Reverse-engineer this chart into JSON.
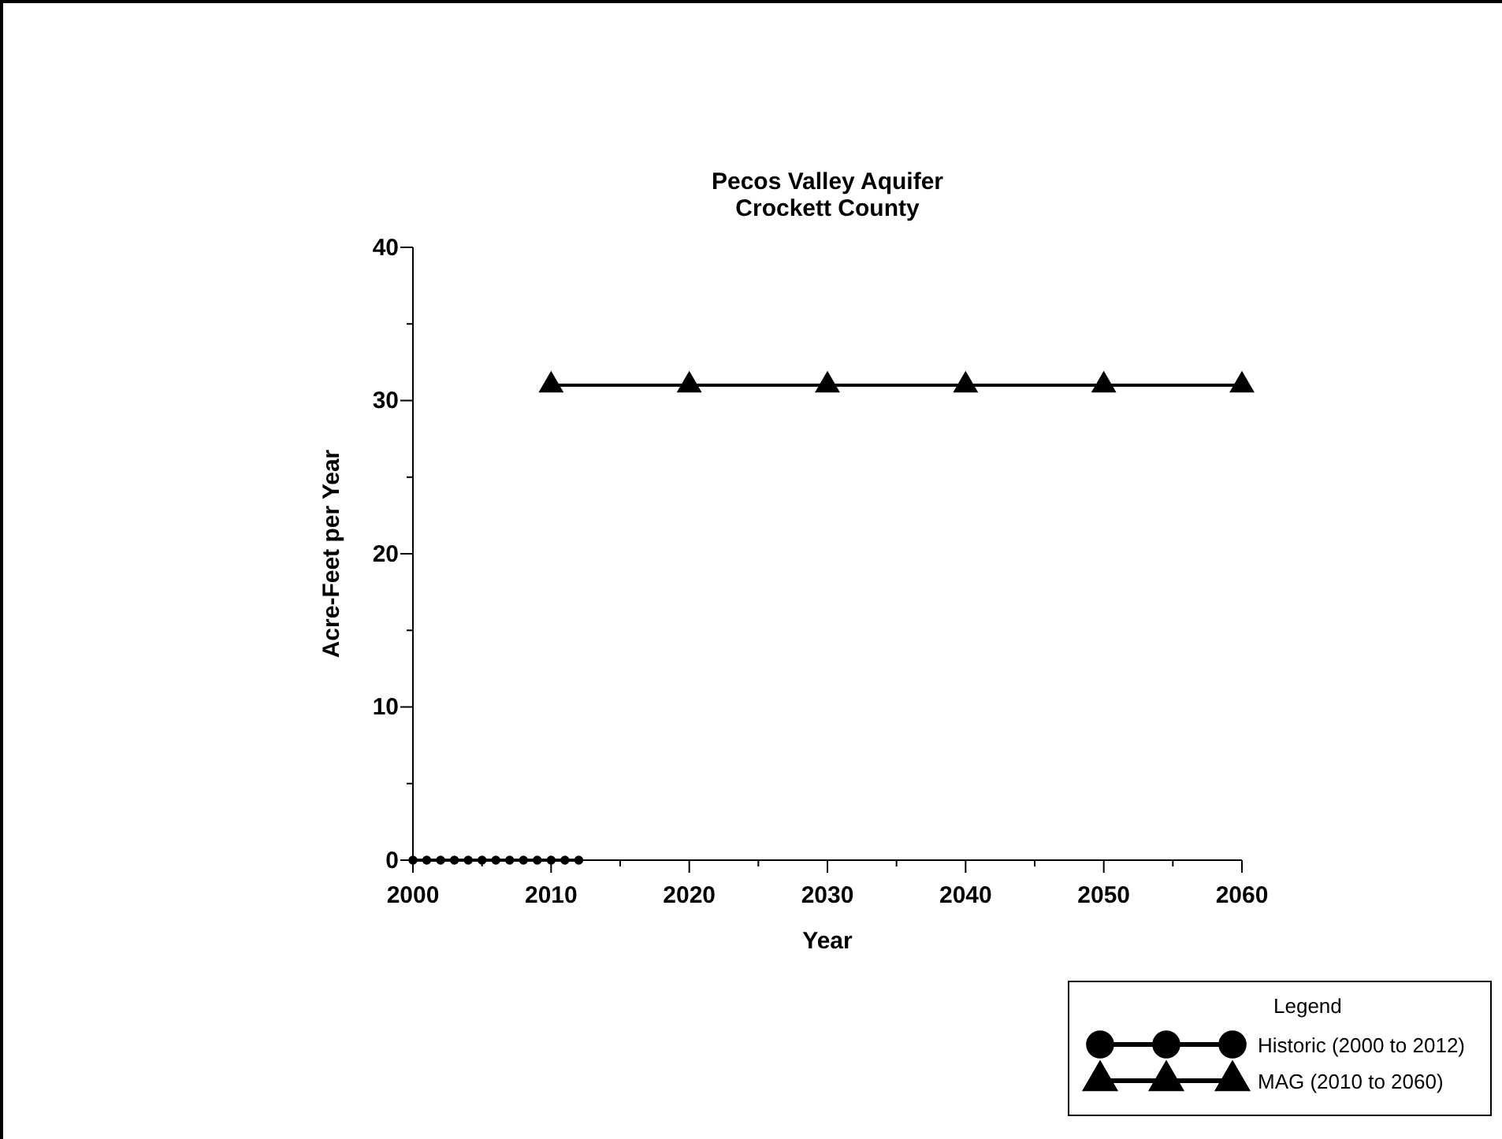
{
  "chart_data": {
    "type": "line",
    "title": "Pecos Valley Aquifer\nCrockett County",
    "xlabel": "Year",
    "ylabel": "Acre-Feet per Year",
    "legend_title": "Legend",
    "legend": "bottom right",
    "xlim": [
      2000,
      2060
    ],
    "xticks": [
      2000,
      {
        "value": 2005,
        "label": null
      },
      2010,
      {
        "value": 2015,
        "label": null
      },
      2020,
      {
        "value": 2025,
        "label": null
      },
      2030,
      {
        "value": 2035,
        "label": null
      },
      2040,
      {
        "value": 2045,
        "label": null
      },
      2050,
      {
        "value": 2055,
        "label": null
      },
      2060
    ],
    "ylim": [
      0,
      40
    ],
    "yticks": [
      0,
      {
        "value": 5,
        "label": null
      },
      10,
      {
        "value": 15,
        "label": null
      },
      20,
      {
        "value": 25,
        "label": null
      },
      30,
      {
        "value": 35,
        "label": null
      },
      40
    ],
    "series": [
      {
        "name": "Historic (2000 to 2012)",
        "color": "#000000",
        "marker": "circle",
        "x": [
          2000,
          2001,
          2002,
          2003,
          2004,
          2005,
          2006,
          2007,
          2008,
          2009,
          2010,
          2011,
          2012
        ],
        "values": [
          0,
          0,
          0,
          0,
          0,
          0,
          0,
          0,
          0,
          0,
          0,
          0,
          0
        ]
      },
      {
        "name": "MAG (2010 to 2060)",
        "color": "#000000",
        "marker": "triangle",
        "x": [
          2010,
          2020,
          2030,
          2040,
          2050,
          2060
        ],
        "values": [
          31,
          31,
          31,
          31,
          31,
          31
        ]
      }
    ]
  }
}
